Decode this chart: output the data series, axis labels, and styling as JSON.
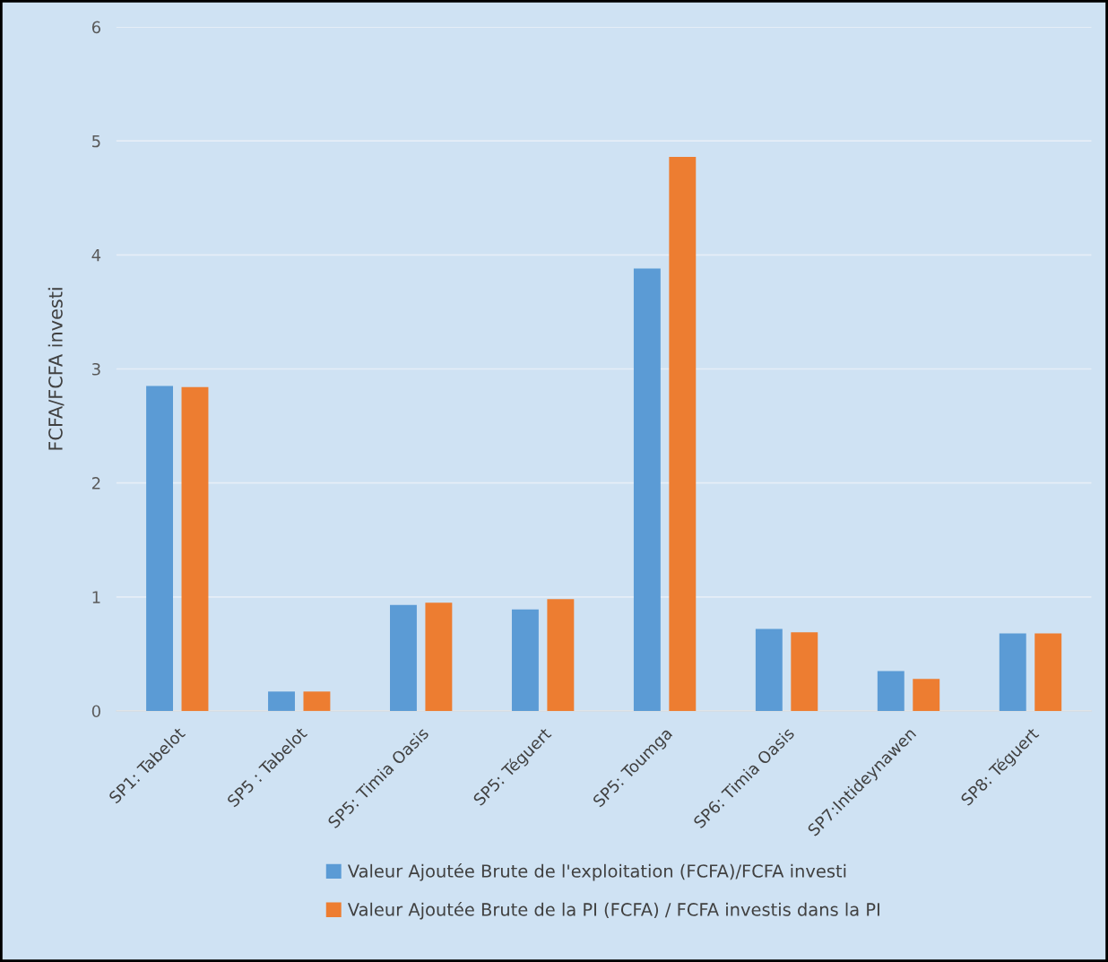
{
  "chart_data": {
    "type": "bar",
    "ylabel": "FCFA/FCFA investi",
    "categories": [
      "SP1: Tabelot",
      "SP5 : Tabelot",
      "SP5: Timia Oasis",
      "SP5: Téguert",
      "SP5: Toumga",
      "SP6: Timia Oasis",
      "SP7:Intideynawen",
      "SP8: Téguert"
    ],
    "series": [
      {
        "name": "Valeur Ajoutée Brute de l'exploitation (FCFA)/FCFA investi",
        "color": "#5b9bd5",
        "values": [
          2.85,
          0.17,
          0.93,
          0.89,
          3.88,
          0.72,
          0.35,
          0.68
        ]
      },
      {
        "name": "Valeur Ajoutée Brute de la PI (FCFA) / FCFA investis dans la PI",
        "color": "#ed7d31",
        "values": [
          2.84,
          0.17,
          0.95,
          0.98,
          4.86,
          0.69,
          0.28,
          0.68
        ]
      }
    ],
    "ylim": [
      0,
      6
    ],
    "yticks": [
      0,
      1,
      2,
      3,
      4,
      5,
      6
    ],
    "grid": "y",
    "legend": "bottom"
  }
}
